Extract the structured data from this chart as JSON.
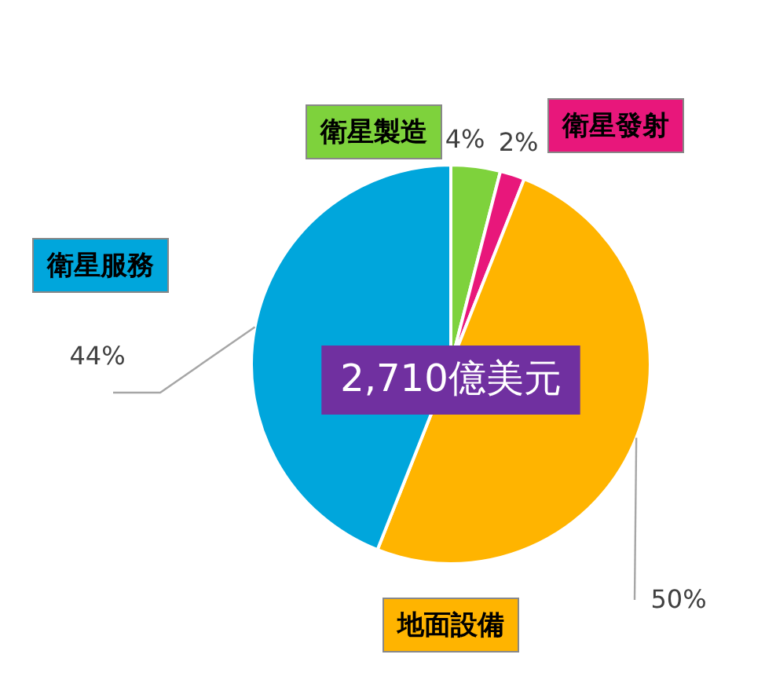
{
  "chart_data": {
    "type": "pie",
    "categories": [
      "衛星製造",
      "衛星發射",
      "地面設備",
      "衛星服務"
    ],
    "values": [
      4,
      2,
      50,
      44
    ],
    "colors": [
      "#7ed23c",
      "#e8177b",
      "#ffb400",
      "#00a6dc"
    ],
    "value_labels": [
      "4%",
      "2%",
      "50%",
      "44%"
    ],
    "legend": false,
    "annotations": [
      "2,710億美元"
    ]
  }
}
